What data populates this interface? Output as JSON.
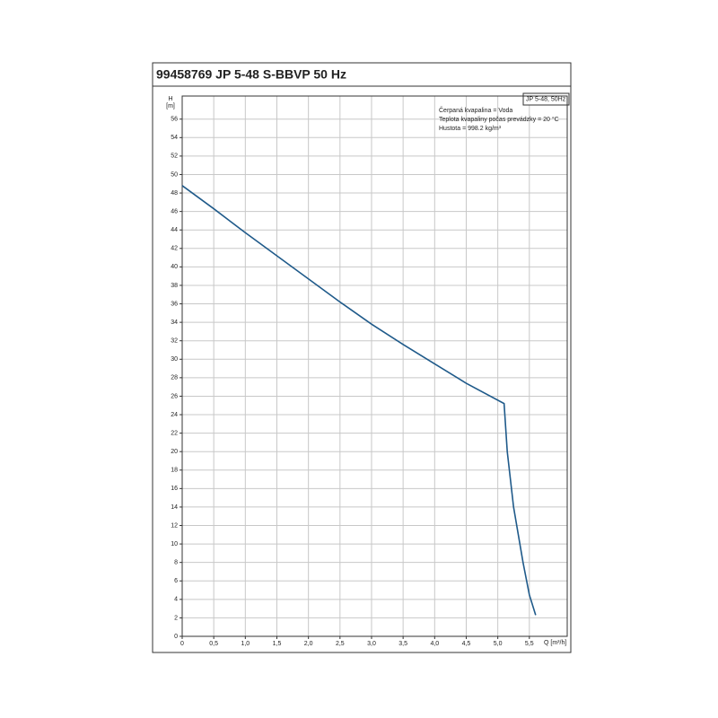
{
  "chart_data": {
    "type": "line",
    "title": "99458769 JP 5-48 S-BBVP 50 Hz",
    "x_label": "Q [m³/h]",
    "y_label": [
      "H",
      "[m]"
    ],
    "annotations": [
      "Čerpaná kvapalina = Voda",
      "Teplota kvapaliny počas prevádzky = 20 °C",
      "Hustota = 998.2 kg/m³"
    ],
    "x": [
      0,
      0.5,
      1.0,
      1.5,
      2.0,
      2.5,
      3.0,
      3.5,
      4.0,
      4.5,
      5.1,
      5.15,
      5.25,
      5.4,
      5.5,
      5.6
    ],
    "series": [
      {
        "name": "JP 5-48, 50Hz",
        "color": "#1f5a8a",
        "values": [
          48.8,
          46.3,
          43.7,
          41.2,
          38.7,
          36.2,
          33.8,
          31.6,
          29.5,
          27.4,
          25.2,
          20,
          14,
          8,
          4.5,
          2.3
        ]
      }
    ],
    "xlim": [
      0,
      6.1
    ],
    "ylim": [
      0,
      58.5
    ],
    "xticks": [
      0,
      {
        "value": 0.5,
        "label": "0,5"
      },
      {
        "value": 1,
        "label": "1,0"
      },
      {
        "value": 1.5,
        "label": "1,5"
      },
      {
        "value": 2,
        "label": "2,0"
      },
      {
        "value": 2.5,
        "label": "2,5"
      },
      {
        "value": 3,
        "label": "3,0"
      },
      {
        "value": 3.5,
        "label": "3,5"
      },
      {
        "value": 4,
        "label": "4,0"
      },
      {
        "value": 4.5,
        "label": "4,5"
      },
      {
        "value": 5,
        "label": "5,0"
      },
      {
        "value": 5.5,
        "label": "5,5"
      }
    ],
    "yticks": [
      0,
      2,
      4,
      6,
      8,
      10,
      12,
      14,
      16,
      18,
      20,
      22,
      24,
      26,
      28,
      30,
      32,
      34,
      36,
      38,
      40,
      42,
      44,
      46,
      48,
      50,
      52,
      54,
      56
    ],
    "grid": true
  }
}
